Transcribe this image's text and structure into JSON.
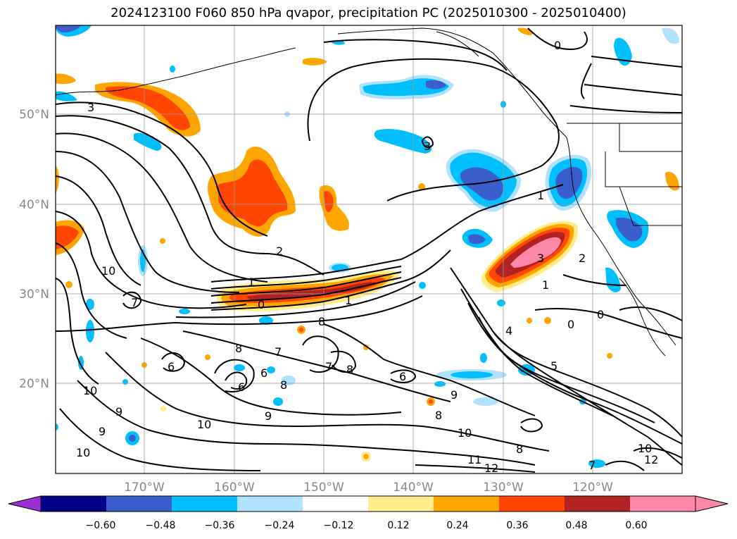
{
  "title": "2024123100 F060 850 hPa qvapor, precipitation PC (2025010300 - 2025010400)",
  "map": {
    "lat_labels": [
      "50°N",
      "40°N",
      "30°N",
      "20°N"
    ],
    "lon_labels": [
      "170°W",
      "160°W",
      "150°W",
      "140°W",
      "130°W",
      "120°W"
    ],
    "lat_range": [
      10,
      60
    ],
    "lon_range": [
      -180,
      -110
    ],
    "grid": true
  },
  "contour_labels": [
    "3",
    "0",
    "3",
    "1",
    "2",
    "1",
    "0",
    "1",
    "1",
    "3",
    "2",
    "0",
    "0",
    "10",
    "7",
    "8",
    "8",
    "7",
    "7",
    "8",
    "6",
    "6",
    "6",
    "8",
    "6",
    "4",
    "5",
    "10",
    "9",
    "9",
    "10",
    "9",
    "10",
    "9",
    "8",
    "10",
    "11",
    "12",
    "8",
    "10",
    "12",
    "7"
  ],
  "colorbar": {
    "ticks": [
      "−0.60",
      "−0.48",
      "−0.36",
      "−0.24",
      "−0.12",
      "0.12",
      "0.24",
      "0.36",
      "0.48",
      "0.60"
    ],
    "colors": [
      "#9b30d9",
      "#00008b",
      "#3a5fcd",
      "#00bfff",
      "#b0e2ff",
      "#ffffff",
      "#ffec8b",
      "#ffa500",
      "#ff4500",
      "#b22222",
      "#ff88aa",
      "#ff88aa"
    ]
  }
}
